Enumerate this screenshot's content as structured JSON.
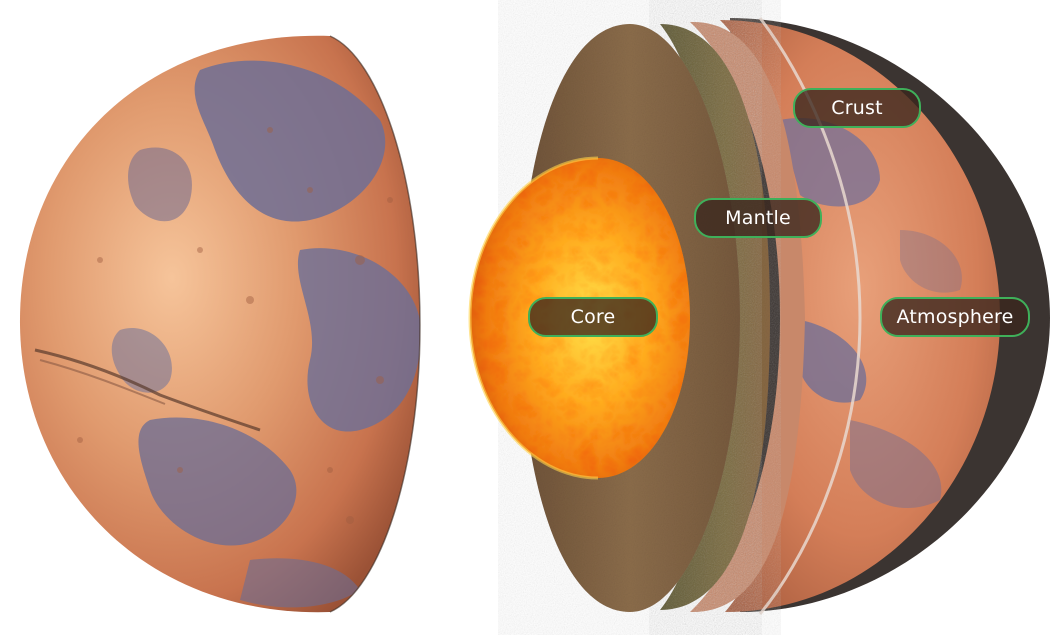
{
  "diagram": {
    "layers": {
      "crust": "Crust",
      "mantle": "Mantle",
      "core": "Core",
      "atmosphere": "Atmosphere"
    }
  },
  "colors": {
    "label_border": "#3fb05a",
    "label_fill": "#3a261e",
    "label_text": "#ffffff",
    "mars_surface": "#d98a5a",
    "mars_dark_region": "#6a6a90",
    "mantle": "#7a6a40",
    "outer_rock": "#8a6a4a",
    "core_hot": "#ff8c10",
    "core_bright": "#ffe040",
    "shadow": "#3b3431"
  }
}
